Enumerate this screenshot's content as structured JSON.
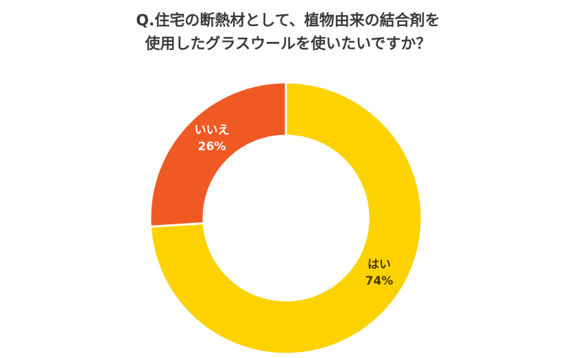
{
  "chart_data": {
    "type": "pie",
    "title": [
      "Q.住宅の断熱材として、植物由来の結合剤を",
      "使用したグラスウールを使いたいですか？"
    ],
    "slices": [
      {
        "label": "はい",
        "value": 74,
        "value_label": "74%",
        "color": "#fcd200",
        "text_color": "#4a3800"
      },
      {
        "label": "いいえ",
        "value": 26,
        "value_label": "26%",
        "color": "#ef5a24",
        "text_color": "#ffffff"
      }
    ],
    "donut": true,
    "start": "12 o'clock",
    "direction": "clockwise"
  }
}
